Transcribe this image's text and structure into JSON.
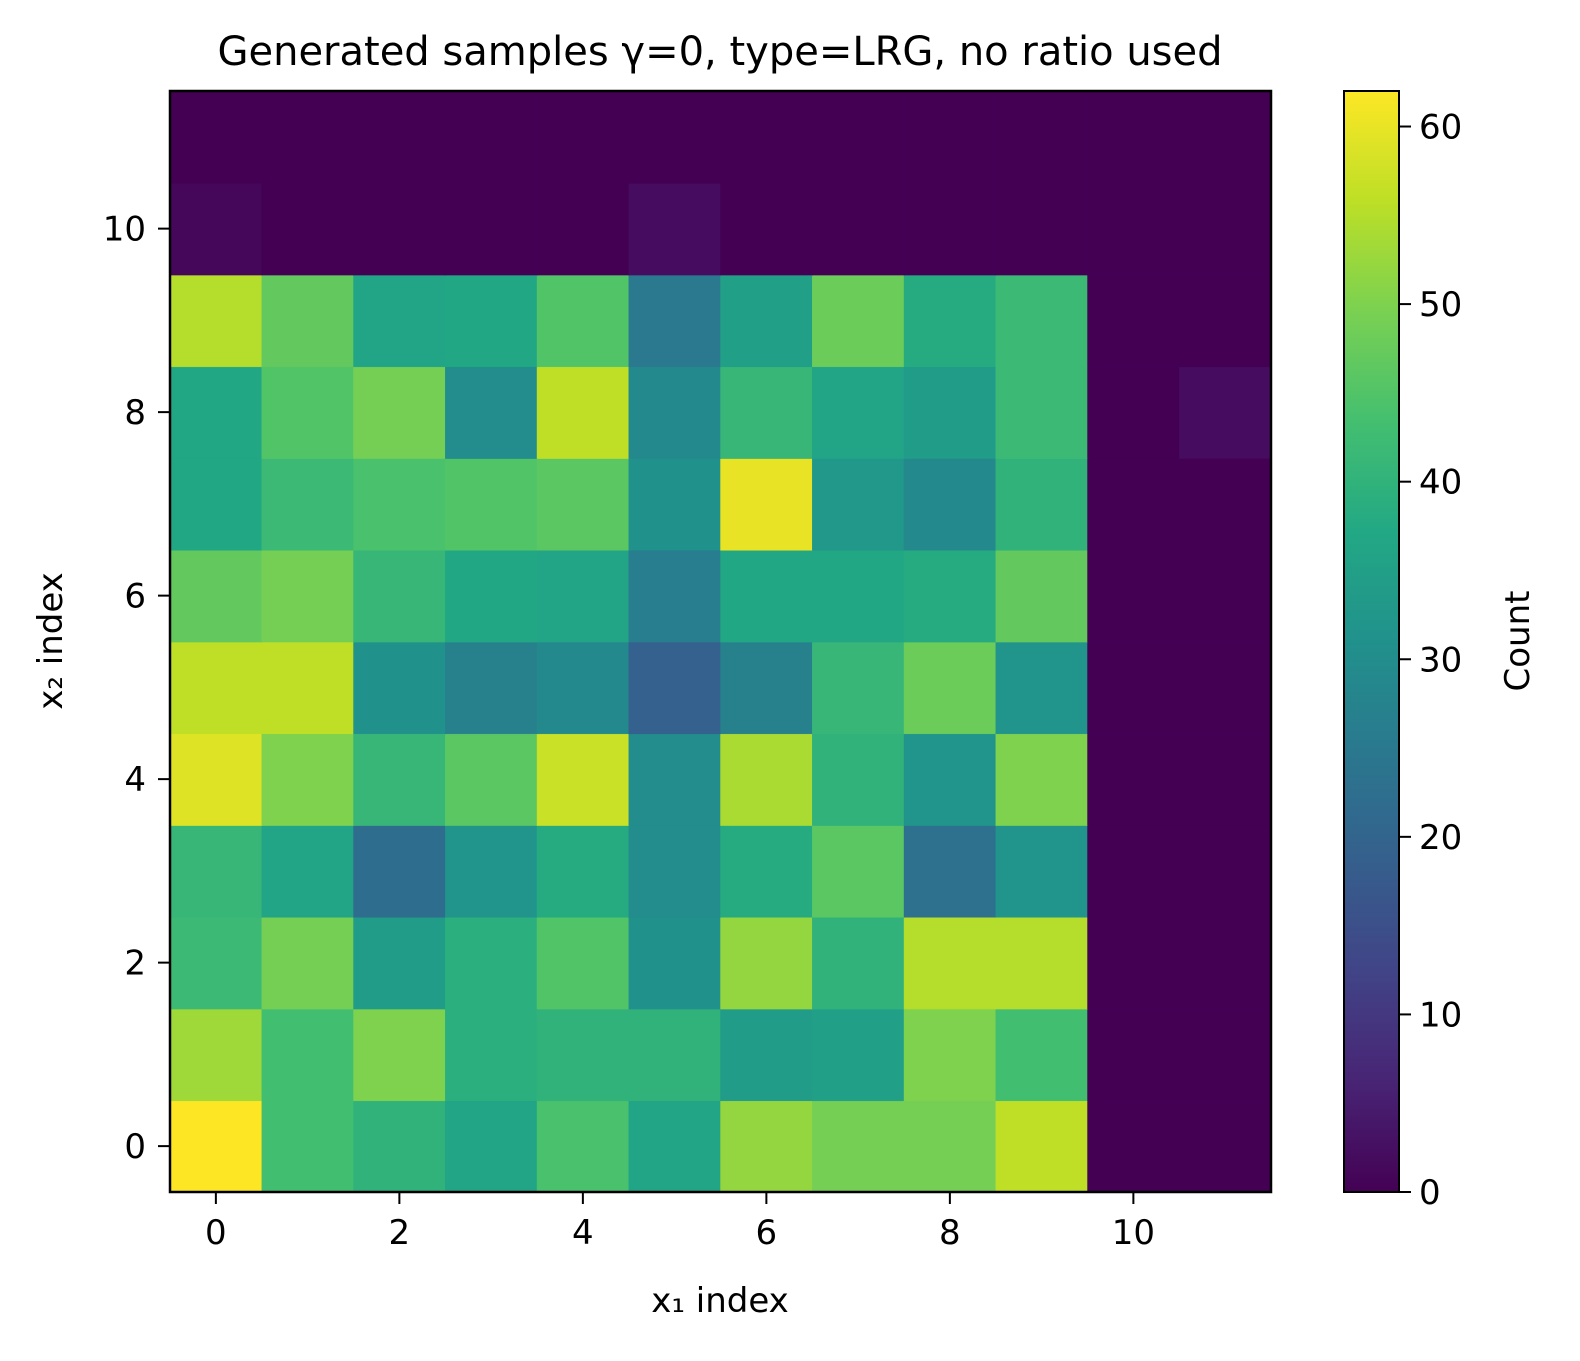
{
  "chart_data": {
    "type": "heatmap",
    "title": "Generated samples γ=0, type=LRG, no ratio used",
    "xlabel": "x₁ index",
    "ylabel": "x₂ index",
    "xlim": [
      -0.5,
      11.5
    ],
    "ylim": [
      -0.5,
      11.5
    ],
    "x_ticks": [
      0,
      2,
      4,
      6,
      8,
      10
    ],
    "y_ticks": [
      0,
      2,
      4,
      6,
      8,
      10
    ],
    "colorbar": {
      "label": "Count",
      "range": [
        0,
        62
      ],
      "ticks": [
        0,
        10,
        20,
        30,
        40,
        50,
        60
      ],
      "colormap": "viridis"
    },
    "grid": false,
    "rows_note": "values[y][x], y = 0 at bottom",
    "values": [
      [
        62,
        43,
        40,
        36,
        44,
        36,
        52,
        49,
        49,
        56,
        0,
        0
      ],
      [
        53,
        43,
        50,
        39,
        40,
        40,
        34,
        35,
        50,
        43,
        0,
        0
      ],
      [
        42,
        49,
        34,
        39,
        45,
        31,
        52,
        40,
        55,
        55,
        0,
        0
      ],
      [
        41,
        36,
        22,
        32,
        38,
        30,
        38,
        46,
        23,
        32,
        0,
        0
      ],
      [
        59,
        50,
        41,
        46,
        57,
        30,
        54,
        40,
        32,
        50,
        0,
        0
      ],
      [
        56,
        56,
        31,
        27,
        29,
        19,
        27,
        41,
        48,
        32,
        0,
        0
      ],
      [
        47,
        49,
        41,
        37,
        36,
        26,
        37,
        37,
        38,
        47,
        0,
        0
      ],
      [
        37,
        42,
        44,
        45,
        46,
        31,
        60,
        33,
        29,
        40,
        0,
        0
      ],
      [
        37,
        45,
        49,
        30,
        56,
        29,
        41,
        36,
        34,
        42,
        0,
        2
      ],
      [
        55,
        47,
        36,
        37,
        45,
        25,
        35,
        48,
        38,
        42,
        0,
        0
      ],
      [
        1,
        0,
        0,
        0,
        0,
        2,
        0,
        0,
        0,
        0,
        0,
        0
      ],
      [
        0,
        0,
        0,
        0,
        0,
        0,
        0,
        0,
        0,
        0,
        0,
        0
      ]
    ]
  }
}
